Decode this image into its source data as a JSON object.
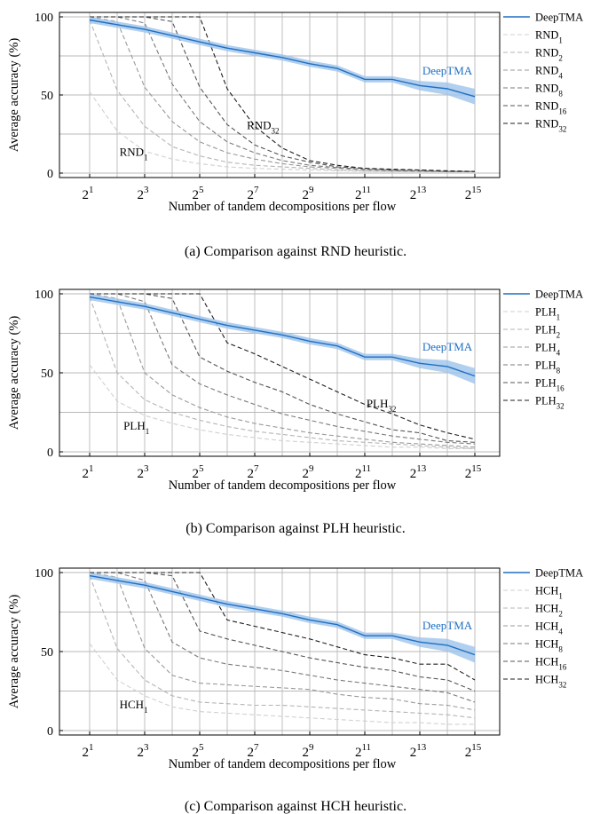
{
  "colors": {
    "deeptma": "#1f6fc4",
    "band": "#9ec3ea",
    "grid": "#b9b9b9",
    "heuristic_shades": [
      "#d0d0d0",
      "#b4b4b4",
      "#999999",
      "#7a7a7a",
      "#555555",
      "#1e1e1e"
    ]
  },
  "chart_data": [
    {
      "type": "line",
      "caption": "(a) Comparison against RND heuristic.",
      "xlabel": "Number of tandem decompositions per flow",
      "ylabel": "Average accuracy (%)",
      "x": [
        1,
        2,
        3,
        4,
        5,
        6,
        7,
        8,
        9,
        10,
        11,
        12,
        13,
        14,
        15
      ],
      "x_tick_exponents": [
        "1",
        "3",
        "5",
        "7",
        "9",
        "11",
        "13",
        "15"
      ],
      "x_tick_base": "2",
      "x_scale": "log2",
      "y_ticks": [
        "0",
        "50",
        "100"
      ],
      "ylim": [
        0,
        100
      ],
      "legend_position": "right",
      "grid": true,
      "series": [
        {
          "name": "DeepTMA",
          "base": "DeepTMA",
          "sub": "",
          "values": [
            98,
            95,
            92,
            88,
            84,
            80,
            77,
            74,
            70,
            67,
            60,
            60,
            56,
            54,
            49
          ],
          "band": [
            2,
            2,
            2,
            2,
            2,
            2,
            2,
            2,
            2,
            2,
            2,
            2,
            3,
            4,
            5
          ]
        },
        {
          "name": "RND1",
          "base": "RND",
          "sub": "1",
          "values": [
            52,
            27,
            14,
            9,
            6,
            4,
            3,
            2.5,
            2,
            1.5,
            1,
            1,
            1,
            1,
            1
          ]
        },
        {
          "name": "RND2",
          "base": "RND",
          "sub": "2",
          "values": [
            98,
            53,
            30,
            17,
            11,
            7,
            5,
            4,
            3,
            2,
            1.5,
            1,
            1,
            1,
            1
          ]
        },
        {
          "name": "RND4",
          "base": "RND",
          "sub": "4",
          "values": [
            100,
            97,
            55,
            33,
            20,
            13,
            9,
            6,
            4,
            3,
            2,
            1.5,
            1,
            1,
            1
          ]
        },
        {
          "name": "RND8",
          "base": "RND",
          "sub": "8",
          "values": [
            100,
            100,
            96,
            57,
            33,
            20,
            13,
            8,
            5,
            3.5,
            2.5,
            2,
            1.5,
            1,
            1
          ]
        },
        {
          "name": "RND16",
          "base": "RND",
          "sub": "16",
          "values": [
            100,
            100,
            100,
            97,
            55,
            31,
            18,
            11,
            7,
            4,
            3,
            2,
            2,
            1,
            1
          ]
        },
        {
          "name": "RND32",
          "base": "RND",
          "sub": "32",
          "values": [
            100,
            100,
            100,
            100,
            100,
            54,
            30,
            16,
            8,
            5,
            3,
            2.5,
            2,
            1.5,
            1
          ]
        }
      ],
      "annotations": [
        {
          "base": "DeepTMA",
          "sub": "",
          "x": 14,
          "y": 63,
          "color": "blue"
        },
        {
          "base": "RND",
          "sub": "32",
          "x": 7.3,
          "y": 28,
          "color": "black"
        },
        {
          "base": "RND",
          "sub": "1",
          "x": 2.6,
          "y": 11,
          "color": "black"
        }
      ]
    },
    {
      "type": "line",
      "caption": "(b) Comparison against PLH heuristic.",
      "xlabel": "Number of tandem decompositions per flow",
      "ylabel": "Average accuracy (%)",
      "x": [
        1,
        2,
        3,
        4,
        5,
        6,
        7,
        8,
        9,
        10,
        11,
        12,
        13,
        14,
        15
      ],
      "x_tick_exponents": [
        "1",
        "3",
        "5",
        "7",
        "9",
        "11",
        "13",
        "15"
      ],
      "x_tick_base": "2",
      "x_scale": "log2",
      "y_ticks": [
        "0",
        "50",
        "100"
      ],
      "ylim": [
        0,
        100
      ],
      "legend_position": "right",
      "grid": true,
      "series": [
        {
          "name": "DeepTMA",
          "base": "DeepTMA",
          "sub": "",
          "values": [
            98,
            95,
            92,
            88,
            84,
            80,
            77,
            74,
            70,
            67,
            60,
            60,
            56,
            54,
            48
          ],
          "band": [
            2,
            2,
            2,
            2,
            2,
            2,
            2,
            2,
            2,
            2,
            2,
            2,
            3,
            4,
            5
          ]
        },
        {
          "name": "PLH1",
          "base": "PLH",
          "sub": "1",
          "values": [
            55,
            32,
            23,
            18,
            14,
            11,
            9,
            7,
            6,
            5,
            4,
            3,
            3,
            2,
            2
          ]
        },
        {
          "name": "PLH2",
          "base": "PLH",
          "sub": "2",
          "values": [
            98,
            50,
            33,
            25,
            20,
            16,
            13,
            11,
            9,
            7,
            6,
            5,
            4,
            3,
            2
          ]
        },
        {
          "name": "PLH4",
          "base": "PLH",
          "sub": "4",
          "values": [
            100,
            97,
            50,
            36,
            28,
            22,
            18,
            15,
            12,
            10,
            8,
            6,
            5,
            4,
            3
          ]
        },
        {
          "name": "PLH8",
          "base": "PLH",
          "sub": "8",
          "values": [
            100,
            100,
            95,
            55,
            43,
            36,
            30,
            24,
            20,
            16,
            13,
            10,
            8,
            6,
            5
          ]
        },
        {
          "name": "PLH16",
          "base": "PLH",
          "sub": "16",
          "values": [
            100,
            100,
            100,
            97,
            60,
            51,
            44,
            38,
            30,
            24,
            19,
            14,
            12,
            7,
            6
          ]
        },
        {
          "name": "PLH32",
          "base": "PLH",
          "sub": "32",
          "values": [
            100,
            100,
            100,
            100,
            100,
            69,
            62,
            54,
            46,
            38,
            30,
            24,
            17,
            12,
            8
          ]
        }
      ],
      "annotations": [
        {
          "base": "DeepTMA",
          "sub": "",
          "x": 14,
          "y": 64,
          "color": "blue"
        },
        {
          "base": "PLH",
          "sub": "32",
          "x": 11.6,
          "y": 28,
          "color": "black"
        },
        {
          "base": "PLH",
          "sub": "1",
          "x": 2.7,
          "y": 14,
          "color": "black"
        }
      ]
    },
    {
      "type": "line",
      "caption": "(c) Comparison against HCH heuristic.",
      "xlabel": "Number of tandem decompositions per flow",
      "ylabel": "Average accuracy (%)",
      "x": [
        1,
        2,
        3,
        4,
        5,
        6,
        7,
        8,
        9,
        10,
        11,
        12,
        13,
        14,
        15
      ],
      "x_tick_exponents": [
        "1",
        "3",
        "5",
        "7",
        "9",
        "11",
        "13",
        "15"
      ],
      "x_tick_base": "2",
      "x_scale": "log2",
      "y_ticks": [
        "0",
        "50",
        "100"
      ],
      "ylim": [
        0,
        100
      ],
      "legend_position": "right",
      "grid": true,
      "series": [
        {
          "name": "DeepTMA",
          "base": "DeepTMA",
          "sub": "",
          "values": [
            98,
            95,
            92,
            88,
            84,
            80,
            77,
            74,
            70,
            67,
            60,
            60,
            56,
            54,
            48
          ],
          "band": [
            2,
            2,
            2,
            2,
            2,
            2,
            2,
            2,
            2,
            2,
            2,
            2,
            3,
            4,
            5
          ]
        },
        {
          "name": "HCH1",
          "base": "HCH",
          "sub": "1",
          "values": [
            55,
            32,
            22,
            15,
            12,
            11,
            10,
            9,
            8,
            7,
            6,
            5,
            5,
            4,
            4
          ]
        },
        {
          "name": "HCH2",
          "base": "HCH",
          "sub": "2",
          "values": [
            98,
            52,
            32,
            22,
            18,
            17,
            16,
            16,
            15,
            14,
            13,
            12,
            11,
            10,
            8
          ]
        },
        {
          "name": "HCH4",
          "base": "HCH",
          "sub": "4",
          "values": [
            100,
            97,
            52,
            35,
            30,
            29,
            28,
            27,
            26,
            23,
            21,
            20,
            17,
            16,
            13
          ]
        },
        {
          "name": "HCH8",
          "base": "HCH",
          "sub": "8",
          "values": [
            100,
            100,
            95,
            56,
            46,
            42,
            40,
            38,
            35,
            32,
            30,
            28,
            26,
            24,
            18
          ]
        },
        {
          "name": "HCH16",
          "base": "HCH",
          "sub": "16",
          "values": [
            100,
            100,
            100,
            98,
            63,
            58,
            54,
            50,
            46,
            43,
            40,
            38,
            34,
            32,
            25
          ]
        },
        {
          "name": "HCH32",
          "base": "HCH",
          "sub": "32",
          "values": [
            100,
            100,
            100,
            100,
            100,
            70,
            66,
            62,
            58,
            53,
            48,
            46,
            42,
            42,
            32
          ]
        }
      ],
      "annotations": [
        {
          "base": "DeepTMA",
          "sub": "",
          "x": 14,
          "y": 64,
          "color": "blue"
        },
        {
          "base": "HCH",
          "sub": "1",
          "x": 2.6,
          "y": 14,
          "color": "black"
        }
      ]
    }
  ]
}
